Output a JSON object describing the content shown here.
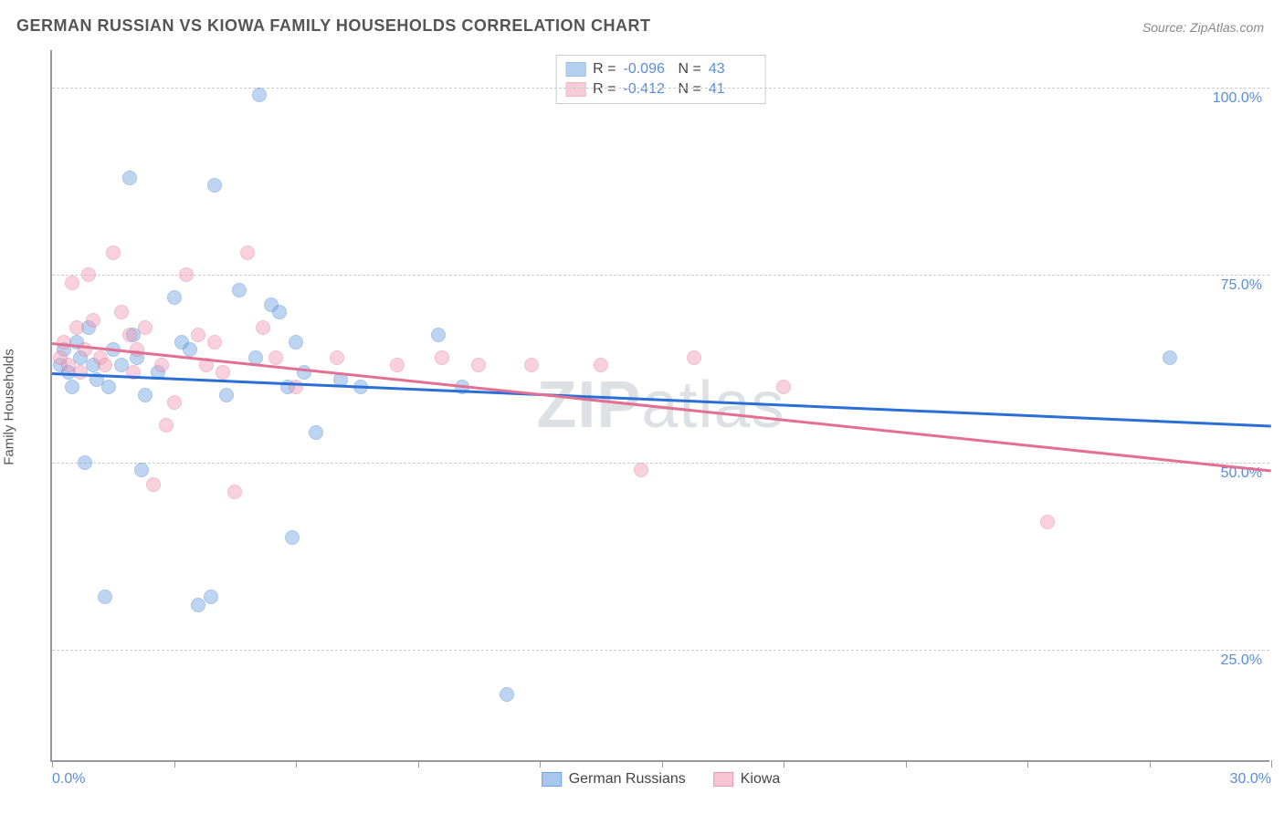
{
  "title": "GERMAN RUSSIAN VS KIOWA FAMILY HOUSEHOLDS CORRELATION CHART",
  "source": "Source: ZipAtlas.com",
  "ylabel": "Family Households",
  "watermark_bold": "ZIP",
  "watermark_rest": "atlas",
  "chart": {
    "type": "scatter",
    "xlim": [
      0,
      30
    ],
    "ylim": [
      10,
      105
    ],
    "ygrid": [
      25,
      50,
      75,
      100
    ],
    "ytick_labels": [
      "25.0%",
      "50.0%",
      "75.0%",
      "100.0%"
    ],
    "xticks": [
      0,
      3,
      6,
      9,
      12,
      15,
      18,
      21,
      24,
      27,
      30
    ],
    "xtick_labels": {
      "0": "0.0%",
      "30": "30.0%"
    },
    "background_color": "#ffffff",
    "grid_color": "#cccccc",
    "axis_color": "#999999",
    "label_color": "#555555",
    "tick_label_color": "#5b8dd6",
    "title_fontsize": 18,
    "tick_fontsize": 16,
    "marker_radius": 8,
    "marker_opacity": 0.45,
    "series": [
      {
        "name": "German Russians",
        "color": "#6fa3e0",
        "stroke": "#3f7fcf",
        "R": "-0.096",
        "N": "43",
        "trend": {
          "x1": 0,
          "y1": 62,
          "x2": 30,
          "y2": 55,
          "color": "#2a6fd6",
          "width": 2.5
        },
        "points": [
          [
            0.2,
            63
          ],
          [
            0.3,
            65
          ],
          [
            0.4,
            62
          ],
          [
            0.5,
            60
          ],
          [
            0.6,
            66
          ],
          [
            0.7,
            64
          ],
          [
            0.8,
            50
          ],
          [
            0.9,
            68
          ],
          [
            1.0,
            63
          ],
          [
            1.1,
            61
          ],
          [
            1.3,
            32
          ],
          [
            1.4,
            60
          ],
          [
            1.5,
            65
          ],
          [
            1.7,
            63
          ],
          [
            1.9,
            88
          ],
          [
            2.0,
            67
          ],
          [
            2.1,
            64
          ],
          [
            2.2,
            49
          ],
          [
            2.3,
            59
          ],
          [
            2.6,
            62
          ],
          [
            3.0,
            72
          ],
          [
            3.2,
            66
          ],
          [
            3.4,
            65
          ],
          [
            3.6,
            31
          ],
          [
            3.9,
            32
          ],
          [
            4.0,
            87
          ],
          [
            4.3,
            59
          ],
          [
            4.6,
            73
          ],
          [
            5.0,
            64
          ],
          [
            5.1,
            99
          ],
          [
            5.4,
            71
          ],
          [
            5.6,
            70
          ],
          [
            5.8,
            60
          ],
          [
            5.9,
            40
          ],
          [
            6.0,
            66
          ],
          [
            6.2,
            62
          ],
          [
            6.5,
            54
          ],
          [
            7.1,
            61
          ],
          [
            7.6,
            60
          ],
          [
            9.5,
            67
          ],
          [
            10.1,
            60
          ],
          [
            11.2,
            19
          ],
          [
            27.5,
            64
          ]
        ]
      },
      {
        "name": "Kiowa",
        "color": "#f09bb4",
        "stroke": "#e36f93",
        "R": "-0.412",
        "N": "41",
        "trend": {
          "x1": 0,
          "y1": 66,
          "x2": 30,
          "y2": 49,
          "color": "#e36f93",
          "width": 2.5
        },
        "points": [
          [
            0.2,
            64
          ],
          [
            0.3,
            66
          ],
          [
            0.4,
            63
          ],
          [
            0.5,
            74
          ],
          [
            0.6,
            68
          ],
          [
            0.7,
            62
          ],
          [
            0.8,
            65
          ],
          [
            0.9,
            75
          ],
          [
            1.0,
            69
          ],
          [
            1.2,
            64
          ],
          [
            1.3,
            63
          ],
          [
            1.5,
            78
          ],
          [
            1.7,
            70
          ],
          [
            1.9,
            67
          ],
          [
            2.0,
            62
          ],
          [
            2.1,
            65
          ],
          [
            2.3,
            68
          ],
          [
            2.5,
            47
          ],
          [
            2.7,
            63
          ],
          [
            2.8,
            55
          ],
          [
            3.0,
            58
          ],
          [
            3.3,
            75
          ],
          [
            3.6,
            67
          ],
          [
            3.8,
            63
          ],
          [
            4.0,
            66
          ],
          [
            4.2,
            62
          ],
          [
            4.5,
            46
          ],
          [
            4.8,
            78
          ],
          [
            5.2,
            68
          ],
          [
            5.5,
            64
          ],
          [
            6.0,
            60
          ],
          [
            7.0,
            64
          ],
          [
            8.5,
            63
          ],
          [
            9.6,
            64
          ],
          [
            10.5,
            63
          ],
          [
            11.8,
            63
          ],
          [
            13.5,
            63
          ],
          [
            14.5,
            49
          ],
          [
            15.8,
            64
          ],
          [
            18.0,
            60
          ],
          [
            24.5,
            42
          ]
        ]
      }
    ]
  },
  "legend_bottom": [
    {
      "label": "German Russians",
      "fill": "#a8c7ec",
      "stroke": "#6fa3e0"
    },
    {
      "label": "Kiowa",
      "fill": "#f6c4d2",
      "stroke": "#e79ab4"
    }
  ],
  "legend_top_labels": {
    "R": "R =",
    "N": "N ="
  }
}
